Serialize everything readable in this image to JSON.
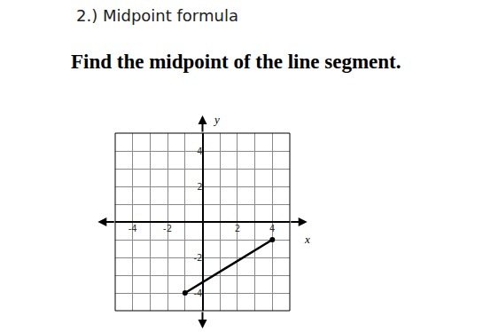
{
  "header": "2.) Midpoint formula",
  "instruction": "Find the midpoint of the line segment.",
  "chart_data": {
    "type": "line",
    "x": [
      -1,
      4
    ],
    "values": [
      -4,
      -1
    ],
    "color": "#000000",
    "marker": "circle",
    "xlabel": "x",
    "ylabel": "y",
    "xlim": [
      -5,
      5
    ],
    "ylim": [
      -5,
      5
    ],
    "xticks": [
      -4,
      -2,
      2,
      4
    ],
    "yticks": [
      -4,
      -2,
      2,
      4
    ],
    "grid": true
  }
}
